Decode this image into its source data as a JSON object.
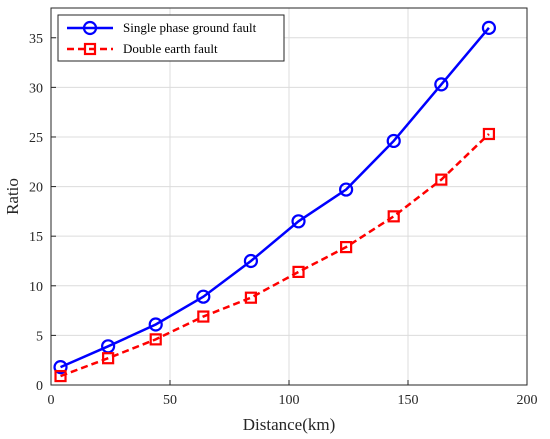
{
  "chart_data": {
    "type": "line",
    "xlabel": "Distance(km)",
    "ylabel": "Ratio",
    "xlim": [
      0,
      200
    ],
    "ylim": [
      0,
      38
    ],
    "xticks": [
      "0",
      "50",
      "100",
      "150",
      "200"
    ],
    "yticks": [
      "0",
      "5",
      "10",
      "15",
      "20",
      "25",
      "30",
      "35"
    ],
    "grid": true,
    "legend_position": "top-left",
    "x": [
      4,
      24,
      44,
      64,
      84,
      104,
      124,
      144,
      164,
      184
    ],
    "series": [
      {
        "name": "Single phase ground fault",
        "color": "#0000ff",
        "line_style": "solid",
        "marker": "circle",
        "values": [
          1.8,
          3.9,
          6.1,
          8.9,
          12.5,
          16.5,
          19.7,
          24.6,
          30.3,
          36.0
        ]
      },
      {
        "name": "Double earth fault",
        "color": "#ff0000",
        "line_style": "dashed",
        "marker": "square",
        "values": [
          0.9,
          2.7,
          4.6,
          6.9,
          8.8,
          11.4,
          13.9,
          17.0,
          20.7,
          25.3
        ]
      }
    ]
  }
}
